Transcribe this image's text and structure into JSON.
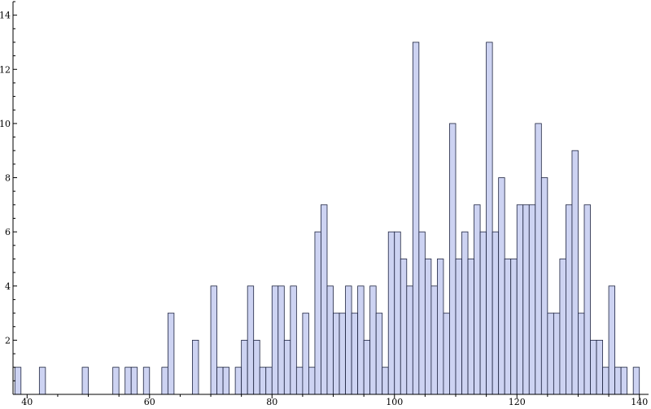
{
  "chart_data": {
    "type": "bar",
    "title": "",
    "xlabel": "",
    "ylabel": "",
    "bin_width": 1,
    "x": [
      38,
      42,
      49,
      54,
      56,
      57,
      59,
      62,
      63,
      67,
      70,
      71,
      72,
      74,
      75,
      76,
      77,
      78,
      79,
      80,
      81,
      82,
      83,
      84,
      85,
      86,
      87,
      88,
      89,
      90,
      91,
      92,
      93,
      94,
      95,
      96,
      97,
      98,
      99,
      100,
      101,
      102,
      103,
      104,
      105,
      106,
      107,
      108,
      109,
      110,
      111,
      112,
      113,
      114,
      115,
      116,
      117,
      118,
      119,
      120,
      121,
      122,
      123,
      124,
      125,
      126,
      127,
      128,
      129,
      130,
      131,
      132,
      133,
      134,
      135,
      136,
      137,
      139
    ],
    "values": [
      1,
      1,
      1,
      1,
      1,
      1,
      1,
      1,
      3,
      2,
      4,
      1,
      1,
      1,
      2,
      4,
      2,
      1,
      1,
      4,
      4,
      2,
      4,
      1,
      3,
      1,
      6,
      7,
      4,
      3,
      3,
      4,
      3,
      4,
      2,
      4,
      3,
      1,
      6,
      6,
      5,
      4,
      13,
      6,
      5,
      4,
      5,
      3,
      10,
      5,
      6,
      5,
      7,
      6,
      13,
      6,
      8,
      5,
      5,
      7,
      7,
      7,
      10,
      8,
      3,
      3,
      5,
      7,
      9,
      3,
      7,
      2,
      2,
      1,
      4,
      1,
      1,
      1
    ],
    "xlim": [
      37.7,
      141.5
    ],
    "ylim": [
      0,
      14.5
    ],
    "x_ticks": [
      40,
      60,
      80,
      100,
      120,
      140
    ],
    "y_ticks": [
      2,
      4,
      6,
      8,
      10,
      12,
      14
    ],
    "colors": {
      "bar_fill": "#cdd3f2",
      "bar_stroke": "#1e2440"
    },
    "grid": false,
    "legend": "none"
  }
}
